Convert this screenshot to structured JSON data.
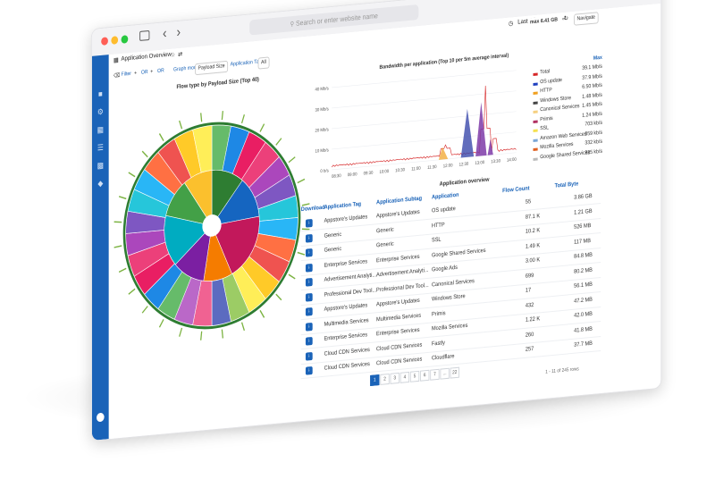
{
  "browser": {
    "address_placeholder": "Search or enter website name",
    "new_tab_glyph": "+",
    "tabs_glyph": "⧉",
    "back_glyph": "‹",
    "forward_glyph": "›"
  },
  "header": {
    "page_title": "Application Overview",
    "time_range": "Last 6 hours",
    "max_value": "max 6.41 GB",
    "navigate_label": "Navigate"
  },
  "filter": {
    "filter_label": "Filter",
    "or1": "OR",
    "or2": "OR",
    "graph_mode": "Graph mode",
    "payload_size": "Payload Size",
    "application_tag": "Application Tag",
    "all": "All"
  },
  "sunburst": {
    "title": "Flow type by Payload Size (Top 40)"
  },
  "chart_data": {
    "type": "line",
    "title": "Bandwidth per application (Top 10 per 5m average interval)",
    "yticks": [
      "40 Mb/s",
      "30 Mb/s",
      "20 Mb/s",
      "10 Mb/s",
      "0 b/s"
    ],
    "xticks": [
      "08:30",
      "09:00",
      "09:30",
      "10:00",
      "10:30",
      "11:00",
      "11:30",
      "12:00",
      "12:30",
      "13:00",
      "13:30",
      "14:00"
    ],
    "legend_header": "Max",
    "series": [
      {
        "name": "Total",
        "max": "39.1 Mb/s",
        "color": "#d62728"
      },
      {
        "name": "OS update",
        "max": "37.9 Mb/s",
        "color": "#1f3fbf"
      },
      {
        "name": "HTTP",
        "max": "6.50 Mb/s",
        "color": "#f0a020"
      },
      {
        "name": "Windows Store",
        "max": "1.48 Mb/s",
        "color": "#444444"
      },
      {
        "name": "Canonical Services",
        "max": "1.45 Mb/s",
        "color": "#f5d080"
      },
      {
        "name": "Primis",
        "max": "1.24 Mb/s",
        "color": "#b03060"
      },
      {
        "name": "SSL",
        "max": "703 kb/s",
        "color": "#f5e050"
      },
      {
        "name": "Amazon Web Services",
        "max": "359 kb/s",
        "color": "#7aa6d6"
      },
      {
        "name": "Mozilla Services",
        "max": "332 kb/s",
        "color": "#e06020"
      },
      {
        "name": "Google Shared Services",
        "max": "325 kb/s",
        "color": "#bbbbbb"
      }
    ]
  },
  "table": {
    "title": "Application overview",
    "headers": [
      "Download",
      "Application Tag",
      "Application Subtag",
      "Application",
      "Flow Count",
      "Total Byte"
    ],
    "rows": [
      [
        "Appstore's Updates",
        "Appstore's Updates",
        "OS update",
        "55",
        "3.86 GB"
      ],
      [
        "Generic",
        "Generic",
        "HTTP",
        "87.1 K",
        "1.21 GB"
      ],
      [
        "Generic",
        "Generic",
        "SSL",
        "10.2 K",
        "526 MB"
      ],
      [
        "Enterprise Services",
        "Enterprise Services",
        "Google Shared Services",
        "1.49 K",
        "117 MB"
      ],
      [
        "Advertisement Analyti...",
        "Advertisement Analyti...",
        "Google Ads",
        "3.00 K",
        "84.8 MB"
      ],
      [
        "Professional Dev Tool...",
        "Professional Dev Tool...",
        "Canonical Services",
        "699",
        "80.2 MB"
      ],
      [
        "Appstore's Updates",
        "Appstore's Updates",
        "Windows Store",
        "17",
        "56.1 MB"
      ],
      [
        "Multimedia Services",
        "Multimedia Services",
        "Primis",
        "432",
        "47.2 MB"
      ],
      [
        "Enterprise Services",
        "Enterprise Services",
        "Mozilla Services",
        "1.22 K",
        "42.0 MB"
      ],
      [
        "Cloud CDN Services",
        "Cloud CDN Services",
        "Fastly",
        "260",
        "41.8 MB"
      ],
      [
        "Cloud CDN Services",
        "Cloud CDN Services",
        "Cloudflare",
        "257",
        "37.7 MB"
      ]
    ],
    "pages": [
      "1",
      "2",
      "3",
      "4",
      "5",
      "6",
      "7",
      "...",
      "22"
    ],
    "rows_info": "1 - 11 of 245 rows"
  }
}
